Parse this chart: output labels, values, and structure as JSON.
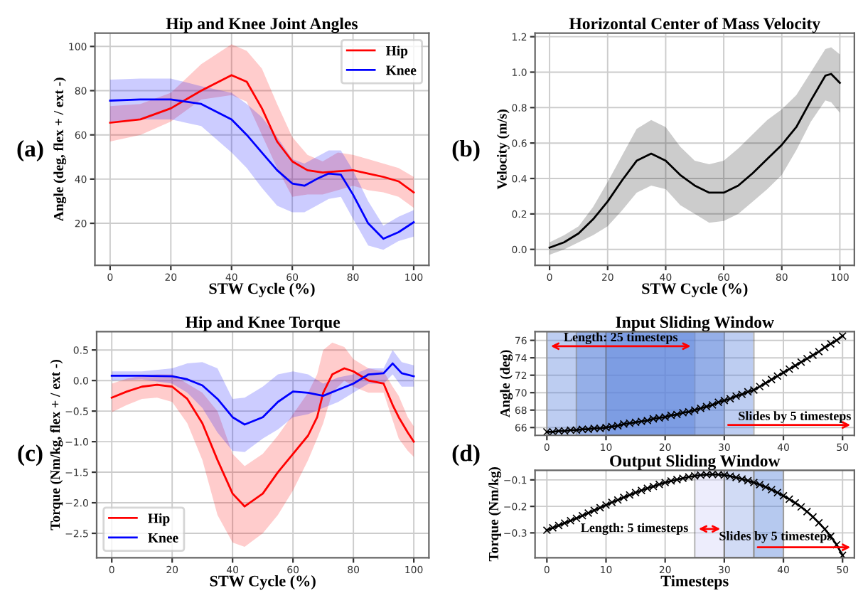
{
  "chart_data": [
    {
      "type": "line",
      "title": "Hip and Knee Joint Angles",
      "xlabel": "STW Cycle (%)",
      "ylabel": "Angle (deg, flex + / ext -)",
      "annotations": [
        "(a)"
      ],
      "xlim": [
        -5,
        105
      ],
      "ylim": [
        1,
        106
      ],
      "xticks": [
        0,
        20,
        40,
        60,
        80,
        100
      ],
      "yticks": [
        20,
        40,
        60,
        80,
        100
      ],
      "grid": true,
      "legend": "top right",
      "series": [
        {
          "name": "Hip",
          "color": "#ff0000",
          "x": [
            0,
            10,
            20,
            30,
            40,
            45,
            50,
            55,
            60,
            65,
            70,
            75,
            80,
            85,
            90,
            95,
            100
          ],
          "values": [
            65.5,
            67,
            72,
            80,
            87,
            84,
            72,
            57,
            48,
            44,
            43,
            43.5,
            44,
            42.5,
            41,
            39,
            34
          ],
          "lower": [
            57,
            60,
            66,
            76,
            78,
            75,
            60,
            45,
            32,
            33,
            33,
            35,
            37,
            35,
            34,
            32,
            27
          ],
          "upper": [
            73,
            74,
            79,
            92,
            101,
            98,
            90,
            74,
            59,
            51,
            48,
            52,
            51,
            49,
            47,
            45,
            41
          ]
        },
        {
          "name": "Knee",
          "color": "#0000ff",
          "x": [
            0,
            10,
            20,
            30,
            40,
            45,
            50,
            55,
            60,
            64,
            68,
            72,
            76,
            80,
            85,
            90,
            95,
            100
          ],
          "values": [
            75.5,
            76,
            76,
            74,
            67,
            60,
            52,
            44,
            38,
            37,
            40,
            42.5,
            42,
            33,
            20,
            13,
            16,
            20.5
          ],
          "lower": [
            66,
            67,
            67,
            64,
            52,
            45,
            36,
            28,
            25,
            25,
            28,
            31,
            32,
            22,
            10,
            8,
            12,
            14
          ],
          "upper": [
            85,
            85.5,
            85.5,
            82,
            79,
            74,
            68,
            59,
            49,
            47,
            50,
            53,
            53,
            44,
            30,
            19,
            23,
            26
          ]
        }
      ]
    },
    {
      "type": "line",
      "title": "Horizontal Center of Mass Velocity",
      "xlabel": "STW Cycle (%)",
      "ylabel": "Velocity (m/s)",
      "annotations": [
        "(b)"
      ],
      "xlim": [
        -5,
        105
      ],
      "ylim": [
        -0.09,
        1.22
      ],
      "xticks": [
        0,
        20,
        40,
        60,
        80,
        100
      ],
      "yticks": [
        {
          "value": 0,
          "label": "0.0"
        },
        0.2,
        0.4,
        0.6,
        0.8,
        {
          "value": 1,
          "label": "1.0"
        },
        1.2
      ],
      "grid": true,
      "series": [
        {
          "color": "#000000",
          "x": [
            0,
            5,
            10,
            15,
            20,
            25,
            30,
            35,
            40,
            45,
            50,
            55,
            60,
            65,
            70,
            75,
            80,
            85,
            90,
            95,
            97,
            100
          ],
          "values": [
            0.01,
            0.04,
            0.09,
            0.17,
            0.27,
            0.39,
            0.5,
            0.54,
            0.5,
            0.42,
            0.36,
            0.32,
            0.32,
            0.36,
            0.43,
            0.51,
            0.59,
            0.69,
            0.84,
            0.98,
            0.99,
            0.94
          ],
          "lower": [
            -0.03,
            0.0,
            0.04,
            0.08,
            0.13,
            0.22,
            0.32,
            0.36,
            0.34,
            0.25,
            0.2,
            0.15,
            0.16,
            0.2,
            0.27,
            0.34,
            0.42,
            0.56,
            0.72,
            0.84,
            0.83,
            0.77
          ],
          "upper": [
            0.04,
            0.08,
            0.13,
            0.24,
            0.38,
            0.53,
            0.68,
            0.73,
            0.69,
            0.58,
            0.5,
            0.48,
            0.5,
            0.57,
            0.65,
            0.73,
            0.79,
            0.87,
            1.0,
            1.13,
            1.14,
            1.1
          ]
        }
      ]
    },
    {
      "type": "line",
      "title": "Hip and Knee Torque",
      "xlabel": "STW Cycle (%)",
      "ylabel": "Torque (Nm/kg, flex + / ext -)",
      "annotations": [
        "(c)"
      ],
      "xlim": [
        -5,
        105
      ],
      "ylim": [
        -2.9,
        0.8
      ],
      "xticks": [
        0,
        20,
        40,
        60,
        80,
        100
      ],
      "yticks": [
        {
          "value": -2.5,
          "label": "−2.5"
        },
        {
          "value": -2.0,
          "label": "−2.0"
        },
        {
          "value": -1.5,
          "label": "−1.5"
        },
        {
          "value": -1.0,
          "label": "−1.0"
        },
        {
          "value": -0.5,
          "label": "−0.5"
        },
        {
          "value": 0.0,
          "label": "0.0"
        },
        {
          "value": 0.5,
          "label": "0.5"
        }
      ],
      "grid": true,
      "legend": "bottom left",
      "series": [
        {
          "name": "Hip",
          "color": "#ff0000",
          "x": [
            0,
            5,
            10,
            15,
            20,
            25,
            30,
            35,
            40,
            44,
            50,
            55,
            60,
            65,
            68,
            70,
            73,
            77,
            80,
            85,
            90,
            93,
            95,
            98,
            100
          ],
          "values": [
            -0.28,
            -0.18,
            -0.1,
            -0.07,
            -0.1,
            -0.3,
            -0.7,
            -1.3,
            -1.85,
            -2.06,
            -1.85,
            -1.5,
            -1.2,
            -0.9,
            -0.6,
            -0.2,
            0.1,
            0.2,
            0.15,
            0.0,
            -0.05,
            -0.4,
            -0.6,
            -0.85,
            -1.0
          ],
          "lower": [
            -0.52,
            -0.4,
            -0.3,
            -0.28,
            -0.35,
            -0.7,
            -1.3,
            -2.2,
            -2.65,
            -2.72,
            -2.5,
            -2.2,
            -1.8,
            -1.3,
            -0.95,
            -0.7,
            -0.2,
            0.0,
            -0.1,
            -0.2,
            -0.2,
            -0.65,
            -0.95,
            -1.15,
            -1.25
          ],
          "upper": [
            -0.05,
            0.03,
            0.08,
            0.1,
            0.1,
            -0.05,
            -0.2,
            -0.5,
            -1.2,
            -1.4,
            -1.2,
            -0.9,
            -0.55,
            -0.2,
            0.1,
            0.5,
            0.62,
            0.55,
            0.35,
            0.2,
            0.15,
            -0.1,
            -0.25,
            -0.6,
            -0.75
          ]
        },
        {
          "name": "Knee",
          "color": "#0000ff",
          "x": [
            0,
            10,
            20,
            25,
            30,
            35,
            40,
            44,
            50,
            55,
            60,
            65,
            70,
            75,
            80,
            85,
            90,
            93,
            96,
            100
          ],
          "values": [
            0.08,
            0.08,
            0.07,
            0.02,
            -0.08,
            -0.3,
            -0.6,
            -0.72,
            -0.6,
            -0.35,
            -0.18,
            -0.2,
            -0.25,
            -0.15,
            -0.05,
            0.1,
            0.12,
            0.28,
            0.12,
            0.07
          ],
          "lower": [
            0.0,
            0.02,
            -0.05,
            -0.2,
            -0.45,
            -0.85,
            -1.15,
            -1.17,
            -0.95,
            -0.8,
            -0.6,
            -0.55,
            -0.45,
            -0.35,
            -0.2,
            -0.05,
            -0.05,
            0.1,
            -0.1,
            -0.1
          ],
          "upper": [
            0.15,
            0.15,
            0.2,
            0.28,
            0.3,
            0.2,
            -0.3,
            -0.28,
            -0.1,
            0.1,
            0.15,
            0.1,
            -0.05,
            0.05,
            0.1,
            0.2,
            0.2,
            0.5,
            0.3,
            0.25
          ]
        }
      ]
    },
    {
      "type": "line",
      "title": "Input Sliding Window",
      "ylabel": "Angle (deg)",
      "annotations": [
        "Length: 25 timesteps",
        "Slides by 5 timesteps",
        "(d)"
      ],
      "xlim": [
        -2,
        52
      ],
      "ylim": [
        65.1,
        77
      ],
      "xticks": [
        0,
        10,
        20,
        30,
        40,
        50
      ],
      "yticks": [
        66,
        68,
        70,
        72,
        74,
        76
      ],
      "grid": true,
      "marker": "cross",
      "bands": [
        {
          "axis": "x",
          "from": 0,
          "to": 25,
          "color": "#5a82dc"
        },
        {
          "axis": "x",
          "from": 5,
          "to": 30,
          "color": "#5a82dc"
        },
        {
          "axis": "x",
          "from": 10,
          "to": 35,
          "color": "#5a82dc"
        }
      ],
      "series": [
        {
          "color": "#000000",
          "x": [
            0,
            1,
            2,
            3,
            4,
            5,
            6,
            7,
            8,
            9,
            10,
            11,
            12,
            13,
            14,
            15,
            16,
            17,
            18,
            19,
            20,
            21,
            22,
            23,
            24,
            25,
            26,
            27,
            28,
            29,
            30,
            31,
            32,
            33,
            34,
            35,
            36,
            37,
            38,
            39,
            40,
            41,
            42,
            43,
            44,
            45,
            46,
            47,
            48,
            49,
            50
          ],
          "values": [
            65.5,
            65.5,
            65.6,
            65.6,
            65.7,
            65.7,
            65.8,
            65.8,
            65.9,
            65.9,
            66.0,
            66.1,
            66.2,
            66.4,
            66.5,
            66.6,
            66.7,
            66.8,
            67.0,
            67.1,
            67.2,
            67.4,
            67.5,
            67.7,
            67.8,
            68.0,
            68.2,
            68.4,
            68.6,
            68.9,
            69.1,
            69.3,
            69.6,
            69.8,
            70.1,
            70.3,
            70.7,
            71.1,
            71.5,
            71.9,
            72.3,
            72.7,
            73.1,
            73.5,
            73.9,
            74.3,
            74.7,
            75.2,
            75.6,
            76.0,
            76.5
          ]
        }
      ]
    },
    {
      "type": "line",
      "title": "Output Sliding Window",
      "xlabel": "Timesteps",
      "ylabel": "Torque (Nm/kg)",
      "annotations": [
        "Length: 5 timesteps",
        "Slides by 5 timesteps"
      ],
      "xlim": [
        -2,
        52
      ],
      "ylim": [
        -0.394,
        -0.064
      ],
      "xticks": [
        0,
        10,
        20,
        30,
        40,
        50
      ],
      "yticks": [
        {
          "value": -0.3,
          "label": "−0.3"
        },
        {
          "value": -0.2,
          "label": "−0.2"
        },
        {
          "value": -0.1,
          "label": "−0.1"
        }
      ],
      "grid": true,
      "marker": "cross",
      "bands": [
        {
          "axis": "x",
          "from": 25,
          "to": 30,
          "color": "#d2d2f8"
        },
        {
          "axis": "x",
          "from": 30,
          "to": 35,
          "color": "#8ca6e6"
        },
        {
          "axis": "x",
          "from": 35,
          "to": 40,
          "color": "#4a78d8"
        }
      ],
      "series": [
        {
          "color": "#000000",
          "x": [
            0,
            1,
            2,
            3,
            4,
            5,
            6,
            7,
            8,
            9,
            10,
            11,
            12,
            13,
            14,
            15,
            16,
            17,
            18,
            19,
            20,
            21,
            22,
            23,
            24,
            25,
            26,
            27,
            28,
            29,
            30,
            31,
            32,
            33,
            34,
            35,
            36,
            37,
            38,
            39,
            40,
            41,
            42,
            43,
            44,
            45,
            46,
            47,
            48,
            49,
            50
          ],
          "values": [
            -0.29,
            -0.281,
            -0.272,
            -0.263,
            -0.254,
            -0.245,
            -0.235,
            -0.225,
            -0.215,
            -0.205,
            -0.195,
            -0.185,
            -0.176,
            -0.166,
            -0.157,
            -0.148,
            -0.14,
            -0.132,
            -0.125,
            -0.117,
            -0.11,
            -0.104,
            -0.099,
            -0.094,
            -0.089,
            -0.085,
            -0.082,
            -0.08,
            -0.079,
            -0.08,
            -0.082,
            -0.086,
            -0.091,
            -0.097,
            -0.103,
            -0.11,
            -0.118,
            -0.127,
            -0.137,
            -0.148,
            -0.16,
            -0.173,
            -0.187,
            -0.202,
            -0.22,
            -0.24,
            -0.262,
            -0.286,
            -0.313,
            -0.345,
            -0.385
          ]
        }
      ]
    }
  ]
}
